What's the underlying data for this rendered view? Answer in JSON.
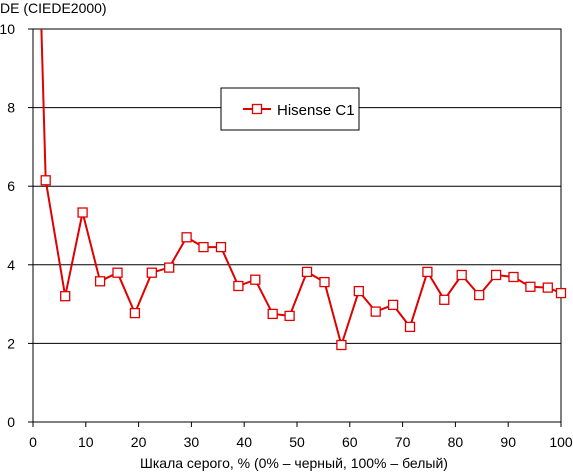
{
  "chart_data": {
    "type": "line",
    "title": "",
    "ylabel": "DE (CIEDE2000)",
    "xlabel": "Шкала серого, % (0% – черный, 100% – белый)",
    "xlim": [
      0,
      100
    ],
    "ylim": [
      0,
      10
    ],
    "xticks": [
      0,
      10,
      20,
      30,
      40,
      50,
      60,
      70,
      80,
      90,
      100
    ],
    "yticks": [
      0,
      2,
      4,
      6,
      8,
      10
    ],
    "grid": "horizontal",
    "legend_position": "top-center",
    "series": [
      {
        "name": "Hisense C1",
        "color": "#e00000",
        "marker": "square-open",
        "x": [
          1.6,
          2.4,
          6.1,
          9.4,
          12.7,
          16.0,
          19.3,
          22.5,
          25.8,
          29.1,
          32.3,
          35.6,
          38.9,
          42.1,
          45.4,
          48.6,
          51.9,
          55.2,
          58.4,
          61.7,
          64.9,
          68.2,
          71.4,
          74.7,
          77.9,
          81.2,
          84.5,
          87.7,
          91.0,
          94.2,
          97.5,
          100.0
        ],
        "y": [
          10.0,
          6.15,
          3.2,
          5.33,
          3.58,
          3.8,
          2.77,
          3.8,
          3.93,
          4.7,
          4.45,
          4.45,
          3.46,
          3.62,
          2.75,
          2.7,
          3.82,
          3.56,
          1.96,
          3.33,
          2.81,
          2.98,
          2.42,
          3.82,
          3.11,
          3.74,
          3.23,
          3.74,
          3.69,
          3.44,
          3.42,
          3.28
        ],
        "markers_from_index": 1
      }
    ]
  }
}
